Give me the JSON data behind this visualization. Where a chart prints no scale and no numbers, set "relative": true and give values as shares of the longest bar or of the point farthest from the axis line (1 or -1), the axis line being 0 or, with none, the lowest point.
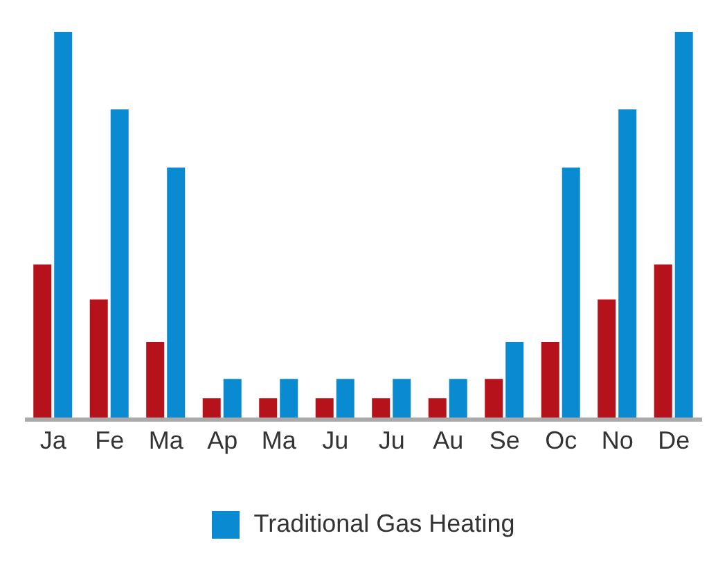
{
  "chart_data": {
    "type": "bar",
    "relative": true,
    "categories": [
      "Ja",
      "Fe",
      "Ma",
      "Ap",
      "Ma",
      "Ju",
      "Ju",
      "Au",
      "Se",
      "Oc",
      "No",
      "De"
    ],
    "series": [
      {
        "color": "#b5121b",
        "values": [
          0.4,
          0.31,
          0.2,
          0.055,
          0.055,
          0.055,
          0.055,
          0.055,
          0.105,
          0.2,
          0.31,
          0.4
        ]
      },
      {
        "name": "Traditional Gas Heating",
        "color": "#0a8ad0",
        "values": [
          1,
          0.8,
          0.65,
          0.105,
          0.105,
          0.105,
          0.105,
          0.105,
          0.2,
          0.65,
          0.8,
          1
        ]
      }
    ],
    "legend": "bottom"
  }
}
